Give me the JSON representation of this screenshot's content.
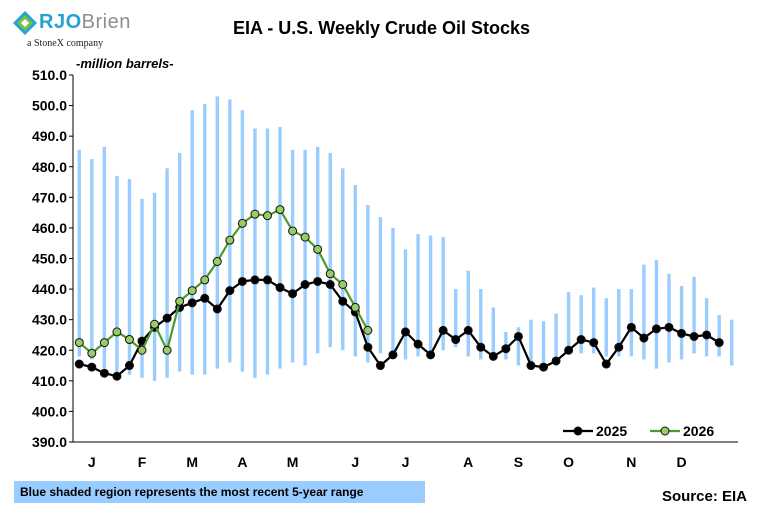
{
  "logo": {
    "brand_primary": "RJO",
    "brand_secondary": "Brien",
    "tagline": "a StoneX company"
  },
  "unit_label": "-million barrels-",
  "footnote": "Blue shaded region represents the most recent 5-year range",
  "source": "Source: EIA",
  "colors": {
    "range_bar": "#99ccff",
    "series_2025": "#000000",
    "series_2026_line": "#4d9a2a",
    "series_2026_marker": "#99cc66"
  },
  "chart_data": {
    "type": "line",
    "title": "EIA - U.S. Weekly Crude Oil Stocks",
    "ylabel": "-million barrels-",
    "ylim": [
      390,
      510
    ],
    "yticks": [
      "390.0",
      "400.0",
      "410.0",
      "420.0",
      "430.0",
      "440.0",
      "450.0",
      "460.0",
      "470.0",
      "480.0",
      "490.0",
      "500.0",
      "510.0"
    ],
    "month_labels": [
      {
        "label": "J",
        "week": 1
      },
      {
        "label": "F",
        "week": 5
      },
      {
        "label": "M",
        "week": 9
      },
      {
        "label": "A",
        "week": 13
      },
      {
        "label": "M",
        "week": 17
      },
      {
        "label": "J",
        "week": 22
      },
      {
        "label": "J",
        "week": 26
      },
      {
        "label": "A",
        "week": 31
      },
      {
        "label": "S",
        "week": 35
      },
      {
        "label": "O",
        "week": 39
      },
      {
        "label": "N",
        "week": 44
      },
      {
        "label": "D",
        "week": 48
      }
    ],
    "range_min": [
      418,
      417,
      414,
      413,
      412,
      411,
      410,
      411,
      413,
      412,
      412,
      414,
      416,
      413,
      411,
      412,
      414,
      416,
      415,
      419,
      421,
      420,
      418,
      416,
      419,
      418,
      417,
      418,
      419,
      420,
      421,
      418,
      417,
      417,
      417,
      415,
      416,
      416,
      418,
      419,
      419,
      419,
      418,
      418,
      418,
      417,
      414,
      416,
      417,
      419,
      418,
      418,
      415
    ],
    "range_max": [
      485.5,
      482.5,
      486.5,
      477,
      476,
      469.5,
      471.5,
      479.5,
      484.5,
      498.5,
      500.5,
      503,
      502,
      498.5,
      492.5,
      492.5,
      493,
      485.5,
      485.5,
      486.5,
      484.5,
      479.5,
      474,
      467.5,
      463.5,
      460,
      453,
      458,
      457.5,
      457,
      440,
      446,
      440,
      434,
      426,
      427.5,
      430,
      429.5,
      432,
      439,
      438,
      440.5,
      437,
      440,
      440,
      448,
      449.5,
      445,
      441,
      444,
      437,
      431.5,
      430
    ],
    "series": [
      {
        "name": "2025",
        "values": [
          415.5,
          414.5,
          412.5,
          411.5,
          415,
          423,
          427.5,
          430.5,
          434,
          435.5,
          437,
          433.5,
          439.5,
          442.5,
          443,
          443,
          440.5,
          438.5,
          441.5,
          442.5,
          441.5,
          436,
          432.5,
          421,
          415,
          418.5,
          426,
          422,
          418.5,
          426.5,
          423.5,
          426.5,
          421,
          418,
          420.5,
          424.5,
          415,
          414.5,
          416.5,
          420,
          423.5,
          422.5,
          415.5,
          421,
          427.5,
          424,
          427,
          427.5,
          425.5,
          424.5,
          425,
          422.5
        ]
      },
      {
        "name": "2026",
        "values": [
          422.5,
          419,
          422.5,
          426,
          423.5,
          420,
          428.5,
          420,
          436,
          439.5,
          443,
          449,
          456,
          461.5,
          464.5,
          464,
          466,
          459,
          457,
          453,
          445,
          441.5,
          434,
          426.5
        ]
      }
    ],
    "legend": "bottom-right"
  }
}
